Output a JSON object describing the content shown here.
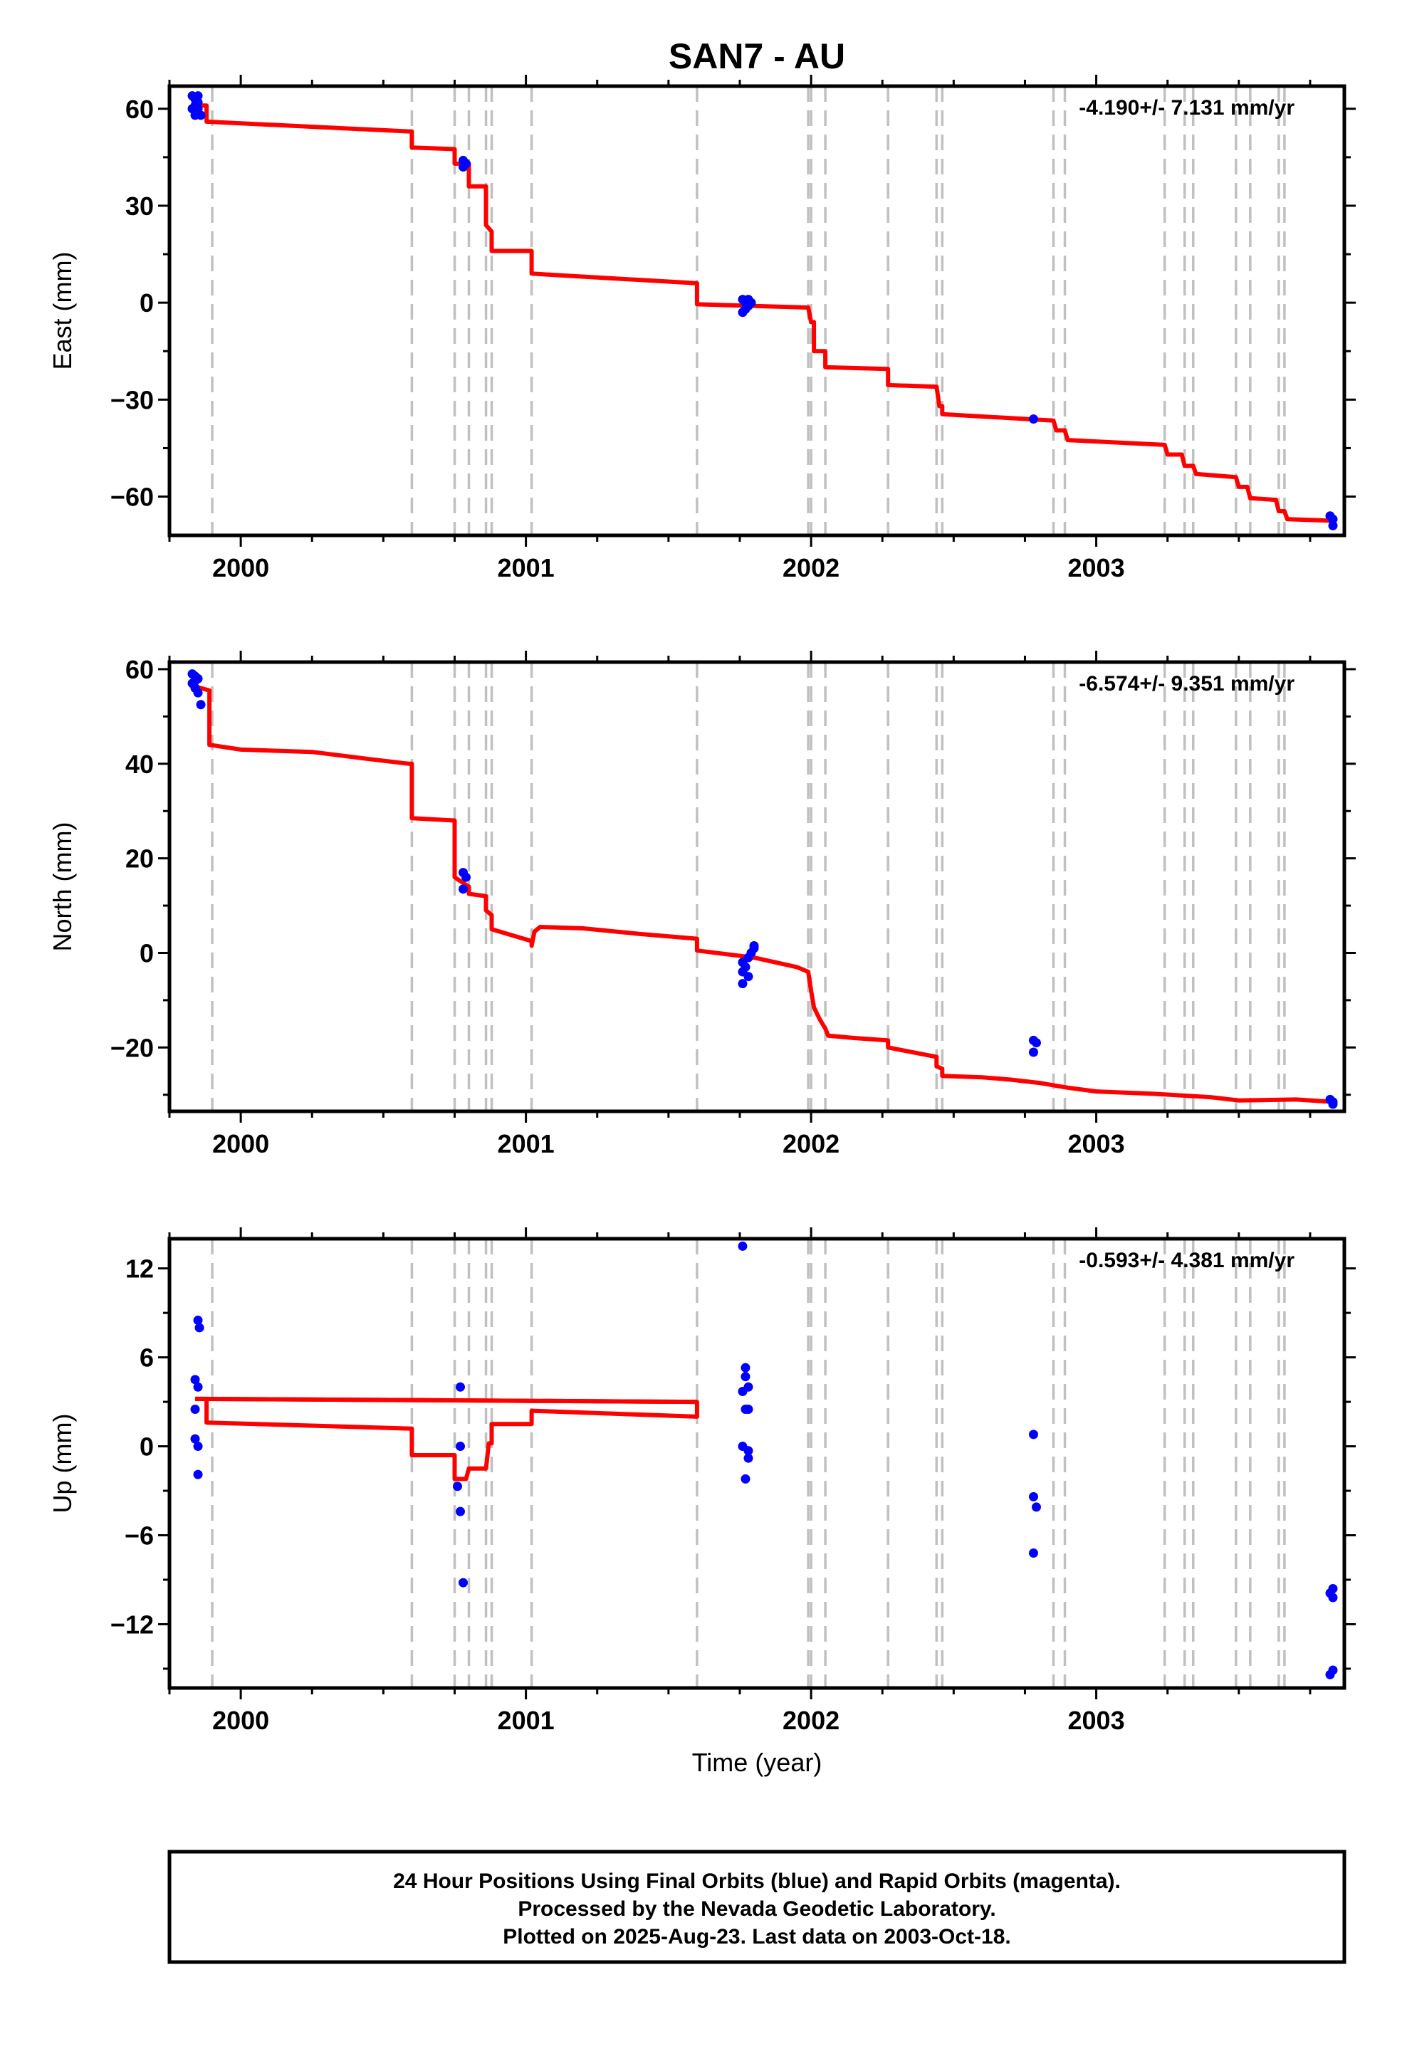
{
  "figure": {
    "title": "SAN7 - AU",
    "xlabel": "Time (year)",
    "footer": [
      "24 Hour Positions Using Final Orbits (blue) and Rapid Orbits (magenta).",
      "Processed by the Nevada Geodetic Laboratory.",
      "Plotted on 2025-Aug-23. Last data on 2003-Oct-18."
    ]
  },
  "colors": {
    "data_points": "#0000ff",
    "model_line": "#ff0000",
    "offset_lines": "#c0c0c0",
    "frame": "#000000"
  },
  "chart_data": [
    {
      "type": "scatter",
      "ylabel": "East (mm)",
      "rate_text": "-4.190+/- 7.131 mm/yr",
      "xlim": [
        1999.75,
        2003.87
      ],
      "ylim": [
        -72,
        67
      ],
      "x_ticks": [
        2000,
        2001,
        2002,
        2003
      ],
      "y_ticks": [
        -60,
        -30,
        0,
        30,
        60
      ],
      "grid": false,
      "series": [
        {
          "marker": "dot",
          "points": [
            [
              1999.83,
              64
            ],
            [
              1999.84,
              63
            ],
            [
              1999.85,
              64
            ],
            [
              1999.83,
              60
            ],
            [
              1999.84,
              61
            ],
            [
              1999.85,
              60
            ],
            [
              1999.84,
              58
            ],
            [
              1999.86,
              58
            ],
            [
              1999.85,
              62
            ],
            [
              2000.78,
              44
            ],
            [
              2000.78,
              42
            ],
            [
              2000.79,
              43
            ],
            [
              2001.76,
              1
            ],
            [
              2001.77,
              0
            ],
            [
              2001.77,
              -2
            ],
            [
              2001.78,
              -1
            ],
            [
              2001.79,
              0
            ],
            [
              2001.76,
              -3
            ],
            [
              2001.78,
              1
            ],
            [
              2002.78,
              -36
            ],
            [
              2003.82,
              -66
            ],
            [
              2003.83,
              -67
            ],
            [
              2003.83,
              -69
            ]
          ]
        },
        {
          "style": "line",
          "points": [
            [
              1999.83,
              61
            ],
            [
              1999.88,
              61
            ],
            [
              1999.88,
              56
            ],
            [
              2000.59,
              53
            ],
            [
              2000.6,
              53
            ],
            [
              2000.6,
              48
            ],
            [
              2000.75,
              47.5
            ],
            [
              2000.75,
              43
            ],
            [
              2000.8,
              43
            ],
            [
              2000.8,
              36
            ],
            [
              2000.86,
              36
            ],
            [
              2000.86,
              24
            ],
            [
              2000.88,
              22
            ],
            [
              2000.88,
              16
            ],
            [
              2001.02,
              16
            ],
            [
              2001.02,
              9
            ],
            [
              2001.6,
              6
            ],
            [
              2001.6,
              -0.5
            ],
            [
              2001.99,
              -1.5
            ],
            [
              2002.0,
              -6
            ],
            [
              2002.01,
              -6
            ],
            [
              2002.01,
              -15
            ],
            [
              2002.05,
              -15
            ],
            [
              2002.05,
              -20
            ],
            [
              2002.27,
              -20.5
            ],
            [
              2002.27,
              -25.5
            ],
            [
              2002.44,
              -26
            ],
            [
              2002.45,
              -32
            ],
            [
              2002.46,
              -32
            ],
            [
              2002.46,
              -34.5
            ],
            [
              2002.85,
              -36.5
            ],
            [
              2002.86,
              -39.5
            ],
            [
              2002.89,
              -39.5
            ],
            [
              2002.9,
              -42.5
            ],
            [
              2003.24,
              -44
            ],
            [
              2003.25,
              -47
            ],
            [
              2003.3,
              -47
            ],
            [
              2003.31,
              -50.5
            ],
            [
              2003.34,
              -50.5
            ],
            [
              2003.35,
              -53
            ],
            [
              2003.49,
              -54
            ],
            [
              2003.5,
              -57
            ],
            [
              2003.53,
              -57
            ],
            [
              2003.54,
              -60.5
            ],
            [
              2003.63,
              -61
            ],
            [
              2003.64,
              -64.5
            ],
            [
              2003.66,
              -64.5
            ],
            [
              2003.67,
              -67
            ],
            [
              2003.78,
              -67.3
            ],
            [
              2003.83,
              -67.5
            ]
          ]
        }
      ],
      "offset_epochs": [
        1999.9,
        2000.6,
        2000.75,
        2000.8,
        2000.86,
        2000.88,
        2001.02,
        2001.6,
        2001.99,
        2002.0,
        2002.05,
        2002.27,
        2002.44,
        2002.46,
        2002.85,
        2002.89,
        2003.24,
        2003.31,
        2003.34,
        2003.49,
        2003.54,
        2003.64,
        2003.66
      ]
    },
    {
      "type": "scatter",
      "ylabel": "North (mm)",
      "rate_text": "-6.574+/- 9.351 mm/yr",
      "xlim": [
        1999.75,
        2003.87
      ],
      "ylim": [
        -33.5,
        61.5
      ],
      "x_ticks": [
        2000,
        2001,
        2002,
        2003
      ],
      "y_ticks": [
        -20,
        0,
        20,
        40,
        60
      ],
      "grid": false,
      "series": [
        {
          "marker": "dot",
          "points": [
            [
              1999.83,
              59
            ],
            [
              1999.84,
              58.5
            ],
            [
              1999.85,
              58
            ],
            [
              1999.83,
              57
            ],
            [
              1999.84,
              56
            ],
            [
              1999.85,
              55
            ],
            [
              1999.86,
              52.5
            ],
            [
              1999.84,
              57.5
            ],
            [
              2000.78,
              17
            ],
            [
              2000.79,
              16
            ],
            [
              2000.78,
              13.5
            ],
            [
              2001.76,
              -2
            ],
            [
              2001.77,
              -3
            ],
            [
              2001.76,
              -4
            ],
            [
              2001.78,
              -5
            ],
            [
              2001.79,
              0
            ],
            [
              2001.8,
              1
            ],
            [
              2001.8,
              1.5
            ],
            [
              2001.76,
              -6.5
            ],
            [
              2001.78,
              -1
            ],
            [
              2002.78,
              -18.5
            ],
            [
              2002.79,
              -19
            ],
            [
              2002.78,
              -21
            ],
            [
              2003.82,
              -31
            ],
            [
              2003.83,
              -31.5
            ],
            [
              2003.83,
              -32
            ]
          ]
        },
        {
          "style": "line",
          "points": [
            [
              1999.83,
              56.5
            ],
            [
              1999.89,
              55.5
            ],
            [
              1999.89,
              44
            ],
            [
              2000.0,
              43
            ],
            [
              2000.25,
              42.5
            ],
            [
              2000.45,
              41
            ],
            [
              2000.59,
              40
            ],
            [
              2000.6,
              40
            ],
            [
              2000.6,
              28.5
            ],
            [
              2000.75,
              28
            ],
            [
              2000.75,
              16
            ],
            [
              2000.8,
              14
            ],
            [
              2000.8,
              12.5
            ],
            [
              2000.86,
              12
            ],
            [
              2000.86,
              9
            ],
            [
              2000.88,
              8
            ],
            [
              2000.88,
              5
            ],
            [
              2001.02,
              2.5
            ],
            [
              2001.02,
              1.5
            ],
            [
              2001.03,
              4.5
            ],
            [
              2001.05,
              5.5
            ],
            [
              2001.2,
              5.2
            ],
            [
              2001.4,
              4
            ],
            [
              2001.6,
              3
            ],
            [
              2001.6,
              0.5
            ],
            [
              2001.8,
              -1
            ],
            [
              2001.95,
              -3
            ],
            [
              2001.99,
              -4
            ],
            [
              2002.0,
              -8
            ],
            [
              2002.01,
              -11.5
            ],
            [
              2002.03,
              -14
            ],
            [
              2002.05,
              -16
            ],
            [
              2002.06,
              -17.5
            ],
            [
              2002.15,
              -18
            ],
            [
              2002.27,
              -18.5
            ],
            [
              2002.27,
              -20
            ],
            [
              2002.44,
              -22
            ],
            [
              2002.44,
              -24
            ],
            [
              2002.46,
              -24.5
            ],
            [
              2002.46,
              -26
            ],
            [
              2002.6,
              -26.3
            ],
            [
              2002.7,
              -26.8
            ],
            [
              2002.8,
              -27.5
            ],
            [
              2002.9,
              -28.5
            ],
            [
              2003.0,
              -29.3
            ],
            [
              2003.2,
              -29.8
            ],
            [
              2003.4,
              -30.5
            ],
            [
              2003.5,
              -31.2
            ],
            [
              2003.7,
              -31
            ],
            [
              2003.83,
              -31.5
            ]
          ]
        }
      ],
      "offset_epochs": [
        1999.9,
        2000.6,
        2000.75,
        2000.8,
        2000.86,
        2000.88,
        2001.02,
        2001.6,
        2001.99,
        2002.0,
        2002.05,
        2002.27,
        2002.44,
        2002.46,
        2002.85,
        2002.89,
        2003.24,
        2003.31,
        2003.34,
        2003.49,
        2003.54,
        2003.64,
        2003.66
      ]
    },
    {
      "type": "scatter",
      "ylabel": "Up (mm)",
      "rate_text": "-0.593+/- 4.381 mm/yr",
      "xlim": [
        1999.75,
        2003.87
      ],
      "ylim": [
        -16.3,
        14.0
      ],
      "x_ticks": [
        2000,
        2001,
        2002,
        2003
      ],
      "y_ticks": [
        -12,
        -6,
        0,
        6,
        12
      ],
      "grid": false,
      "series": [
        {
          "marker": "dot",
          "points": [
            [
              1999.85,
              8.5
            ],
            [
              1999.855,
              8
            ],
            [
              1999.84,
              4.5
            ],
            [
              1999.85,
              4
            ],
            [
              1999.84,
              2.5
            ],
            [
              1999.84,
              0.5
            ],
            [
              1999.85,
              0
            ],
            [
              1999.85,
              -1.9
            ],
            [
              2000.77,
              4
            ],
            [
              2000.77,
              0
            ],
            [
              2000.76,
              -2.7
            ],
            [
              2000.77,
              -4.4
            ],
            [
              2000.78,
              -9.2
            ],
            [
              2001.76,
              13.5
            ],
            [
              2001.77,
              5.3
            ],
            [
              2001.77,
              4.7
            ],
            [
              2001.78,
              4
            ],
            [
              2001.76,
              3.7
            ],
            [
              2001.77,
              2.5
            ],
            [
              2001.78,
              2.5
            ],
            [
              2001.76,
              0
            ],
            [
              2001.78,
              -0.3
            ],
            [
              2001.78,
              -0.8
            ],
            [
              2001.77,
              -2.2
            ],
            [
              2002.78,
              0.8
            ],
            [
              2002.78,
              -3.4
            ],
            [
              2002.79,
              -4.1
            ],
            [
              2002.78,
              -7.2
            ],
            [
              2003.82,
              -9.9
            ],
            [
              2003.83,
              -9.6
            ],
            [
              2003.83,
              -10.2
            ],
            [
              2003.82,
              -15.4
            ],
            [
              2003.83,
              -15.1
            ]
          ]
        },
        {
          "style": "line",
          "points": [
            [
              1999.84,
              3.2
            ],
            [
              1999.88,
              3.2
            ],
            [
              1999.88,
              1.6
            ],
            [
              2000.59,
              1.2
            ],
            [
              2000.6,
              1.2
            ],
            [
              2000.6,
              -0.6
            ],
            [
              2000.74,
              -0.6
            ],
            [
              2000.75,
              -0.6
            ],
            [
              2000.75,
              -2.2
            ],
            [
              2000.79,
              -2.2
            ],
            [
              2000.8,
              -1.5
            ],
            [
              2000.86,
              -1.5
            ],
            [
              2000.87,
              0.2
            ],
            [
              2000.88,
              0.2
            ],
            [
              2000.88,
              1.5
            ],
            [
              2001.02,
              1.5
            ],
            [
              2001.02,
              2.4
            ],
            [
              2001.6,
              2.0
            ],
            [
              2001.6,
              3.0
            ],
            [
              1999.84,
              3.2
            ],
            [
              1999.84,
              3.2
            ]
          ]
        },
        {
          "style": "line",
          "points": [
            [
              2001.6,
              3.0
            ],
            [
              1999.84,
              3.2
            ]
          ]
        }
      ],
      "offset_epochs": [
        1999.9,
        2000.6,
        2000.75,
        2000.8,
        2000.86,
        2000.88,
        2001.02,
        2001.6,
        2001.99,
        2002.0,
        2002.05,
        2002.27,
        2002.44,
        2002.46,
        2002.85,
        2002.89,
        2003.24,
        2003.31,
        2003.34,
        2003.49,
        2003.54,
        2003.64,
        2003.66
      ]
    }
  ]
}
